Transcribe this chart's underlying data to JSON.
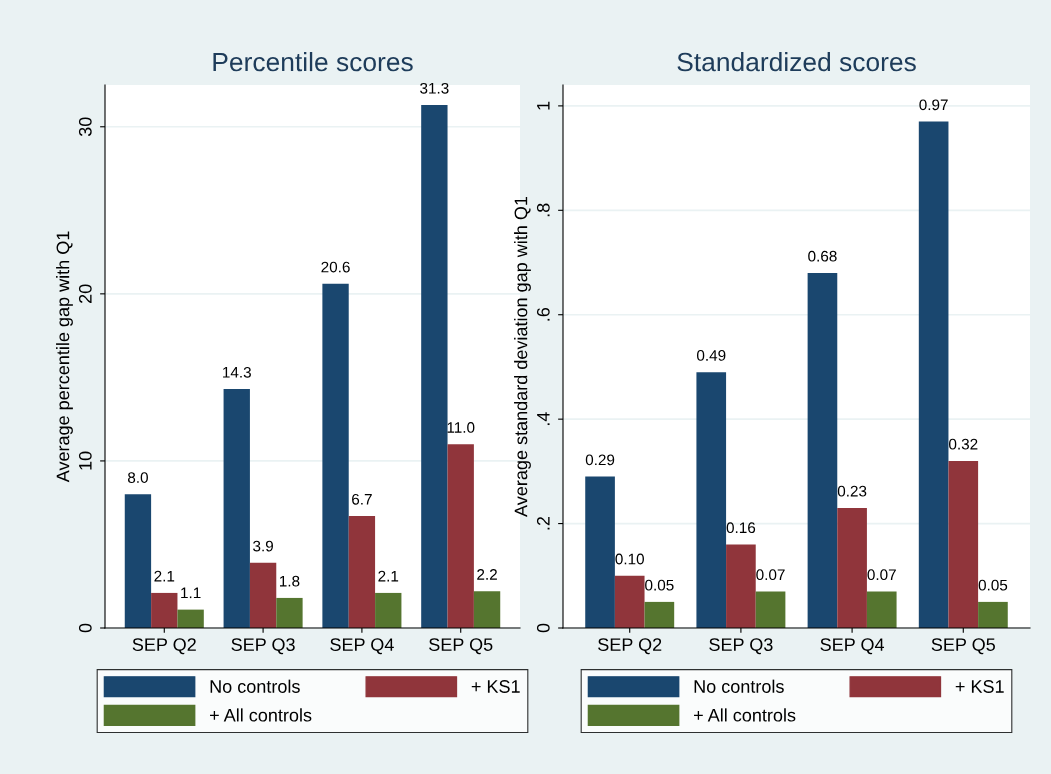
{
  "chart_data": [
    {
      "type": "bar",
      "title": "Percentile scores",
      "ylabel": "Average percentile gap with Q1",
      "categories": [
        "SEP Q2",
        "SEP Q3",
        "SEP Q4",
        "SEP Q5"
      ],
      "series": [
        {
          "name": "No controls",
          "color": "#1a476f",
          "values": [
            8.0,
            14.3,
            20.6,
            31.3
          ],
          "value_labels": [
            "8.0",
            "14.3",
            "20.6",
            "31.3"
          ]
        },
        {
          "name": "+ KS1",
          "color": "#90353b",
          "values": [
            2.1,
            3.9,
            6.7,
            11.0
          ],
          "value_labels": [
            "2.1",
            "3.9",
            "6.7",
            "11.0"
          ]
        },
        {
          "name": "+ All controls",
          "color": "#55752f",
          "values": [
            1.1,
            1.8,
            2.1,
            2.2
          ],
          "value_labels": [
            "1.1",
            "1.8",
            "2.1",
            "2.2"
          ]
        }
      ],
      "ylim": [
        0,
        32.5
      ],
      "yticks": [
        0,
        10,
        20,
        30
      ],
      "grid": "y",
      "legend": "bottom"
    },
    {
      "type": "bar",
      "title": "Standardized scores",
      "ylabel": "Average standard deviation gap with Q1",
      "categories": [
        "SEP Q2",
        "SEP Q3",
        "SEP Q4",
        "SEP Q5"
      ],
      "series": [
        {
          "name": "No controls",
          "color": "#1a476f",
          "values": [
            0.29,
            0.49,
            0.68,
            0.97
          ],
          "value_labels": [
            "0.29",
            "0.49",
            "0.68",
            "0.97"
          ]
        },
        {
          "name": "+ KS1",
          "color": "#90353b",
          "values": [
            0.1,
            0.16,
            0.23,
            0.32
          ],
          "value_labels": [
            "0.10",
            "0.16",
            "0.23",
            "0.32"
          ]
        },
        {
          "name": "+ All controls",
          "color": "#55752f",
          "values": [
            0.05,
            0.07,
            0.07,
            0.05
          ],
          "value_labels": [
            "0.05",
            "0.07",
            "0.07",
            "0.05"
          ]
        }
      ],
      "ylim": [
        0,
        1.04
      ],
      "yticks": [
        0,
        {
          "value": 0.2,
          "label": ".2"
        },
        {
          "value": 0.4,
          "label": ".4"
        },
        {
          "value": 0.6,
          "label": ".6"
        },
        {
          "value": 0.8,
          "label": ".8"
        },
        1
      ],
      "grid": "y",
      "legend": "bottom"
    }
  ]
}
